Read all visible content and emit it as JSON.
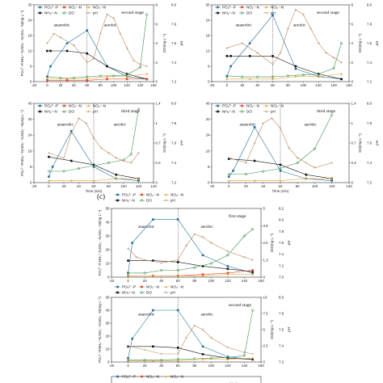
{
  "panel_label": "(c)",
  "legend": [
    {
      "label": "PO₄³⁻-P",
      "color": "#1f6e9c",
      "marker": "square"
    },
    {
      "label": "NO₂⁻-N",
      "color": "#d8452b",
      "marker": "square"
    },
    {
      "label": "NO₃⁻-N",
      "color": "#e8a33a",
      "marker": "triangle"
    },
    {
      "label": "NH₄⁺-N",
      "color": "#111111",
      "marker": "square"
    },
    {
      "label": "DO",
      "color": "#3d8f4a",
      "marker": "circle"
    },
    {
      "label": "pH",
      "color": "#b8865a",
      "marker": "plus"
    }
  ],
  "annotations": {
    "anaerobic": "anaerobic",
    "aerobic": "aerobic"
  },
  "chart_data": [
    {
      "type": "line",
      "stage": "second stage",
      "xlabel": "",
      "ylabel": "PO₄³⁻-P,NH₄⁺-N,NO₂⁻-N,NO₃⁻-N(mg·L⁻¹)",
      "y2label": "DO(mg·L⁻¹)",
      "y3label": "pH",
      "xlim": [
        -20,
        160
      ],
      "xticks": [
        "-20",
        "0",
        "20",
        "40",
        "60",
        "80",
        "100",
        "120",
        "140",
        "160"
      ],
      "ylim": [
        0,
        30
      ],
      "y2lim": [
        0,
        8
      ],
      "phlim": [
        7.2,
        8.0
      ],
      "phticks": [
        "7.2",
        "7.4",
        "7.6",
        "7.8",
        "8.0"
      ],
      "series": [
        {
          "name": "PO₄³⁻-P",
          "x": [
            0,
            5,
            30,
            60,
            90,
            120,
            150
          ],
          "y": [
            2,
            6,
            15,
            20,
            6,
            2,
            1
          ]
        },
        {
          "name": "NH₄⁺-N",
          "x": [
            0,
            5,
            30,
            60,
            90,
            120,
            150
          ],
          "y": [
            12,
            12,
            12,
            11,
            6,
            3,
            1
          ]
        },
        {
          "name": "NO₃⁻-N",
          "x": [
            0,
            30,
            60,
            90,
            120,
            150
          ],
          "y": [
            1,
            1,
            1,
            2,
            2,
            3
          ]
        },
        {
          "name": "NO₂⁻-N",
          "x": [
            0,
            30,
            60,
            90,
            120,
            150
          ],
          "y": [
            0.5,
            0.5,
            0.5,
            1,
            1,
            1
          ]
        },
        {
          "name": "DO",
          "x": [
            0,
            20,
            40,
            60,
            80,
            100,
            120,
            140,
            150
          ],
          "y": [
            0.5,
            0.4,
            0.4,
            0.5,
            0.6,
            0.6,
            0.7,
            1.5,
            7
          ]
        },
        {
          "name": "pH",
          "x": [
            0,
            10,
            20,
            40,
            60,
            70,
            80,
            90,
            100,
            110,
            120,
            130,
            140,
            150
          ],
          "y": [
            7.6,
            7.7,
            7.66,
            7.58,
            7.4,
            7.44,
            7.7,
            7.9,
            7.86,
            7.7,
            7.55,
            7.42,
            7.38,
            7.36
          ]
        }
      ]
    },
    {
      "type": "line",
      "stage": "second stage",
      "xlabel": "",
      "ylabel": "",
      "y2label": "DO(mg·L⁻¹)",
      "y3label": "pH",
      "xlim": [
        -20,
        160
      ],
      "xticks": [
        "-20",
        "0",
        "20",
        "40",
        "60",
        "80",
        "100",
        "120",
        "140",
        "160"
      ],
      "ylim": [
        0,
        30
      ],
      "y2lim": [
        0,
        8
      ],
      "phlim": [
        7.2,
        8.0
      ],
      "phticks": [
        "7.2",
        "7.4",
        "7.6",
        "7.8",
        "8.0"
      ],
      "series": [
        {
          "name": "PO₄³⁻-P",
          "x": [
            0,
            5,
            30,
            60,
            90,
            120,
            150
          ],
          "y": [
            2,
            6,
            15,
            26,
            5,
            2,
            1
          ]
        },
        {
          "name": "NH₄⁺-N",
          "x": [
            0,
            5,
            30,
            60,
            90,
            120,
            150
          ],
          "y": [
            10,
            10,
            10,
            10,
            6,
            3,
            1
          ]
        },
        {
          "name": "NO₃⁻-N",
          "x": [
            0,
            30,
            60,
            90,
            120,
            150
          ],
          "y": [
            1,
            1,
            1,
            2,
            2,
            3
          ]
        },
        {
          "name": "DO",
          "x": [
            0,
            20,
            40,
            60,
            80,
            100,
            120,
            140,
            150
          ],
          "y": [
            0.6,
            0.5,
            0.5,
            0.5,
            0.6,
            0.7,
            0.8,
            1.4,
            4
          ]
        },
        {
          "name": "pH",
          "x": [
            0,
            20,
            40,
            60,
            70,
            80,
            90,
            100,
            110,
            120,
            130,
            140,
            150
          ],
          "y": [
            7.55,
            7.6,
            7.5,
            7.38,
            7.5,
            7.75,
            7.95,
            7.9,
            7.75,
            7.6,
            7.5,
            7.45,
            7.4
          ]
        }
      ]
    },
    {
      "type": "line",
      "stage": "third stage",
      "xlabel": "Time (min)",
      "ylabel": "PO₄³⁻-P,NH₄⁺-N,NO₂⁻-N,NO₃⁻-N(mg·L⁻¹)",
      "y2label": "DO(mg·L⁻¹)",
      "y3label": "pH",
      "xlim": [
        -20,
        140
      ],
      "xticks": [
        "-20",
        "0",
        "20",
        "40",
        "60",
        "80",
        "100",
        "120",
        "140"
      ],
      "ylim": [
        0,
        40
      ],
      "y2lim": [
        0,
        1.4
      ],
      "phlim": [
        7.2,
        8.0
      ],
      "phticks": [
        "7.2",
        "7.4",
        "7.6",
        "7.8",
        "8.0"
      ],
      "series": [
        {
          "name": "PO₄³⁻-P",
          "x": [
            0,
            5,
            30,
            60,
            90,
            120
          ],
          "y": [
            3,
            8,
            26,
            8,
            2,
            1
          ]
        },
        {
          "name": "NH₄⁺-N",
          "x": [
            0,
            30,
            60,
            90,
            120
          ],
          "y": [
            13,
            11,
            9,
            4,
            2
          ]
        },
        {
          "name": "NO₃⁻-N",
          "x": [
            0,
            30,
            60,
            90,
            120
          ],
          "y": [
            1,
            1,
            1,
            2,
            2
          ]
        },
        {
          "name": "DO",
          "x": [
            0,
            20,
            40,
            60,
            80,
            100,
            110,
            120
          ],
          "y": [
            0.2,
            0.2,
            0.25,
            0.3,
            0.35,
            0.4,
            0.5,
            1.3
          ]
        },
        {
          "name": "pH",
          "x": [
            0,
            20,
            30,
            40,
            50,
            60,
            70,
            80,
            90,
            100,
            110,
            120
          ],
          "y": [
            7.5,
            7.45,
            7.7,
            7.85,
            7.8,
            7.65,
            7.55,
            7.5,
            7.45,
            7.42,
            7.4,
            7.5
          ]
        }
      ]
    },
    {
      "type": "line",
      "stage": "third stage",
      "xlabel": "Time (min)",
      "ylabel": "",
      "y2label": "DO(mg·L⁻¹)",
      "y3label": "pH",
      "xlim": [
        -20,
        140
      ],
      "xticks": [
        "-20",
        "0",
        "20",
        "40",
        "60",
        "80",
        "100",
        "120",
        "140"
      ],
      "ylim": [
        0,
        40
      ],
      "y2lim": [
        0,
        1.4
      ],
      "phlim": [
        7.2,
        8.0
      ],
      "phticks": [
        "7.2",
        "7.4",
        "7.6",
        "7.8",
        "8.0"
      ],
      "series": [
        {
          "name": "PO₄³⁻-P",
          "x": [
            0,
            5,
            30,
            60,
            90,
            120
          ],
          "y": [
            3,
            6,
            28,
            6,
            2,
            1
          ]
        },
        {
          "name": "NH₄⁺-N",
          "x": [
            0,
            30,
            60,
            90,
            120
          ],
          "y": [
            12,
            11,
            9,
            4,
            2
          ]
        },
        {
          "name": "NO₃⁻-N",
          "x": [
            0,
            30,
            60,
            90,
            120
          ],
          "y": [
            1,
            1,
            1,
            2,
            2
          ]
        },
        {
          "name": "DO",
          "x": [
            0,
            20,
            40,
            60,
            80,
            100,
            120
          ],
          "y": [
            0.15,
            0.15,
            0.2,
            0.25,
            0.35,
            0.6,
            1.2
          ]
        },
        {
          "name": "pH",
          "x": [
            0,
            20,
            30,
            40,
            50,
            60,
            70,
            80,
            90,
            100,
            120
          ],
          "y": [
            7.45,
            7.4,
            7.6,
            7.8,
            7.85,
            7.75,
            7.55,
            7.45,
            7.4,
            7.35,
            7.4
          ]
        }
      ]
    },
    {
      "type": "line",
      "stage": "first stage",
      "xlabel": "",
      "ylabel": "PO₄³⁻-P,NH₄⁺-N,NO₂⁻-N,NO₃⁻-N(mg·L⁻¹)",
      "y2label": "DO(mg·L⁻¹)",
      "y3label": "pH",
      "xlim": [
        -20,
        160
      ],
      "xticks": [
        "-20",
        "0",
        "20",
        "40",
        "60",
        "80",
        "100",
        "120",
        "140",
        "160"
      ],
      "ylim": [
        0,
        50
      ],
      "y2lim": [
        0,
        5
      ],
      "phlim": [
        7.0,
        8.2
      ],
      "phticks": [
        "7.0",
        "7.2",
        "7.4",
        "7.6",
        "7.8",
        "8.0",
        "8.2"
      ],
      "series": [
        {
          "name": "PO₄³⁻-P",
          "x": [
            0,
            5,
            30,
            60,
            90,
            120,
            150
          ],
          "y": [
            3,
            25,
            42,
            42,
            16,
            8,
            3
          ]
        },
        {
          "name": "NH₄⁺-N",
          "x": [
            0,
            30,
            60,
            90,
            120,
            150
          ],
          "y": [
            12,
            12,
            11,
            8,
            6,
            4
          ]
        },
        {
          "name": "NO₂⁻-N",
          "x": [
            0,
            30,
            60,
            90,
            120,
            150
          ],
          "y": [
            1,
            1,
            1,
            2,
            3,
            5
          ]
        },
        {
          "name": "NO₃⁻-N",
          "x": [
            0,
            30,
            60,
            90,
            120,
            150
          ],
          "y": [
            1,
            1,
            1,
            1,
            2,
            2
          ]
        },
        {
          "name": "DO",
          "x": [
            0,
            20,
            40,
            60,
            80,
            100,
            120,
            140,
            150
          ],
          "y": [
            0.3,
            0.3,
            0.5,
            0.5,
            0.7,
            1.0,
            1.6,
            3.0,
            3.5
          ]
        },
        {
          "name": "pH",
          "x": [
            0,
            10,
            20,
            40,
            60,
            70,
            80,
            90,
            100,
            120,
            140,
            150
          ],
          "y": [
            7.5,
            7.35,
            7.3,
            7.25,
            7.3,
            7.55,
            7.75,
            7.7,
            7.6,
            7.45,
            7.35,
            7.3
          ]
        }
      ]
    },
    {
      "type": "line",
      "stage": "second stage",
      "xlabel": "",
      "ylabel": "PO₄³⁻-P,NH₄⁺-N,NO₂⁻-N,NO₃⁻-N(mg·L⁻¹)",
      "y2label": "DO(mg·L⁻¹)",
      "y3label": "pH",
      "xlim": [
        -20,
        160
      ],
      "xticks": [
        "-20",
        "0",
        "20",
        "40",
        "60",
        "80",
        "100",
        "120",
        "140",
        "160"
      ],
      "ylim": [
        0,
        50
      ],
      "y2lim": [
        0,
        10
      ],
      "phlim": [
        7.2,
        8.0
      ],
      "phticks": [
        "7.2",
        "7.4",
        "7.6",
        "7.8",
        "8.0"
      ],
      "series": [
        {
          "name": "PO₄³⁻-P",
          "x": [
            0,
            5,
            30,
            60,
            90,
            120,
            150
          ],
          "y": [
            3,
            18,
            40,
            40,
            12,
            4,
            2
          ]
        },
        {
          "name": "NH₄⁺-N",
          "x": [
            0,
            30,
            60,
            90,
            120,
            150
          ],
          "y": [
            12,
            12,
            11,
            6,
            3,
            2
          ]
        },
        {
          "name": "NO₃⁻-N",
          "x": [
            0,
            30,
            60,
            90,
            120,
            150
          ],
          "y": [
            1,
            1,
            1,
            2,
            2,
            3
          ]
        },
        {
          "name": "DO",
          "x": [
            0,
            20,
            40,
            60,
            80,
            100,
            120,
            140,
            150
          ],
          "y": [
            0.3,
            0.3,
            0.3,
            0.4,
            0.5,
            0.6,
            0.7,
            1.0,
            8
          ]
        },
        {
          "name": "pH",
          "x": [
            0,
            20,
            40,
            60,
            70,
            80,
            90,
            100,
            120,
            140,
            150
          ],
          "y": [
            7.4,
            7.35,
            7.3,
            7.3,
            7.5,
            7.65,
            7.6,
            7.5,
            7.38,
            7.32,
            7.3
          ]
        }
      ]
    },
    {
      "type": "line",
      "stage": "third stage",
      "xlabel": "",
      "ylabel": "",
      "y2label": "",
      "y3label": "",
      "xlim": [
        -20,
        160
      ],
      "xticks": [],
      "ylim": [
        0,
        50
      ],
      "y2lim": [
        0,
        10
      ],
      "phlim": [
        7.2,
        8.0
      ],
      "phticks": [],
      "series": []
    }
  ]
}
